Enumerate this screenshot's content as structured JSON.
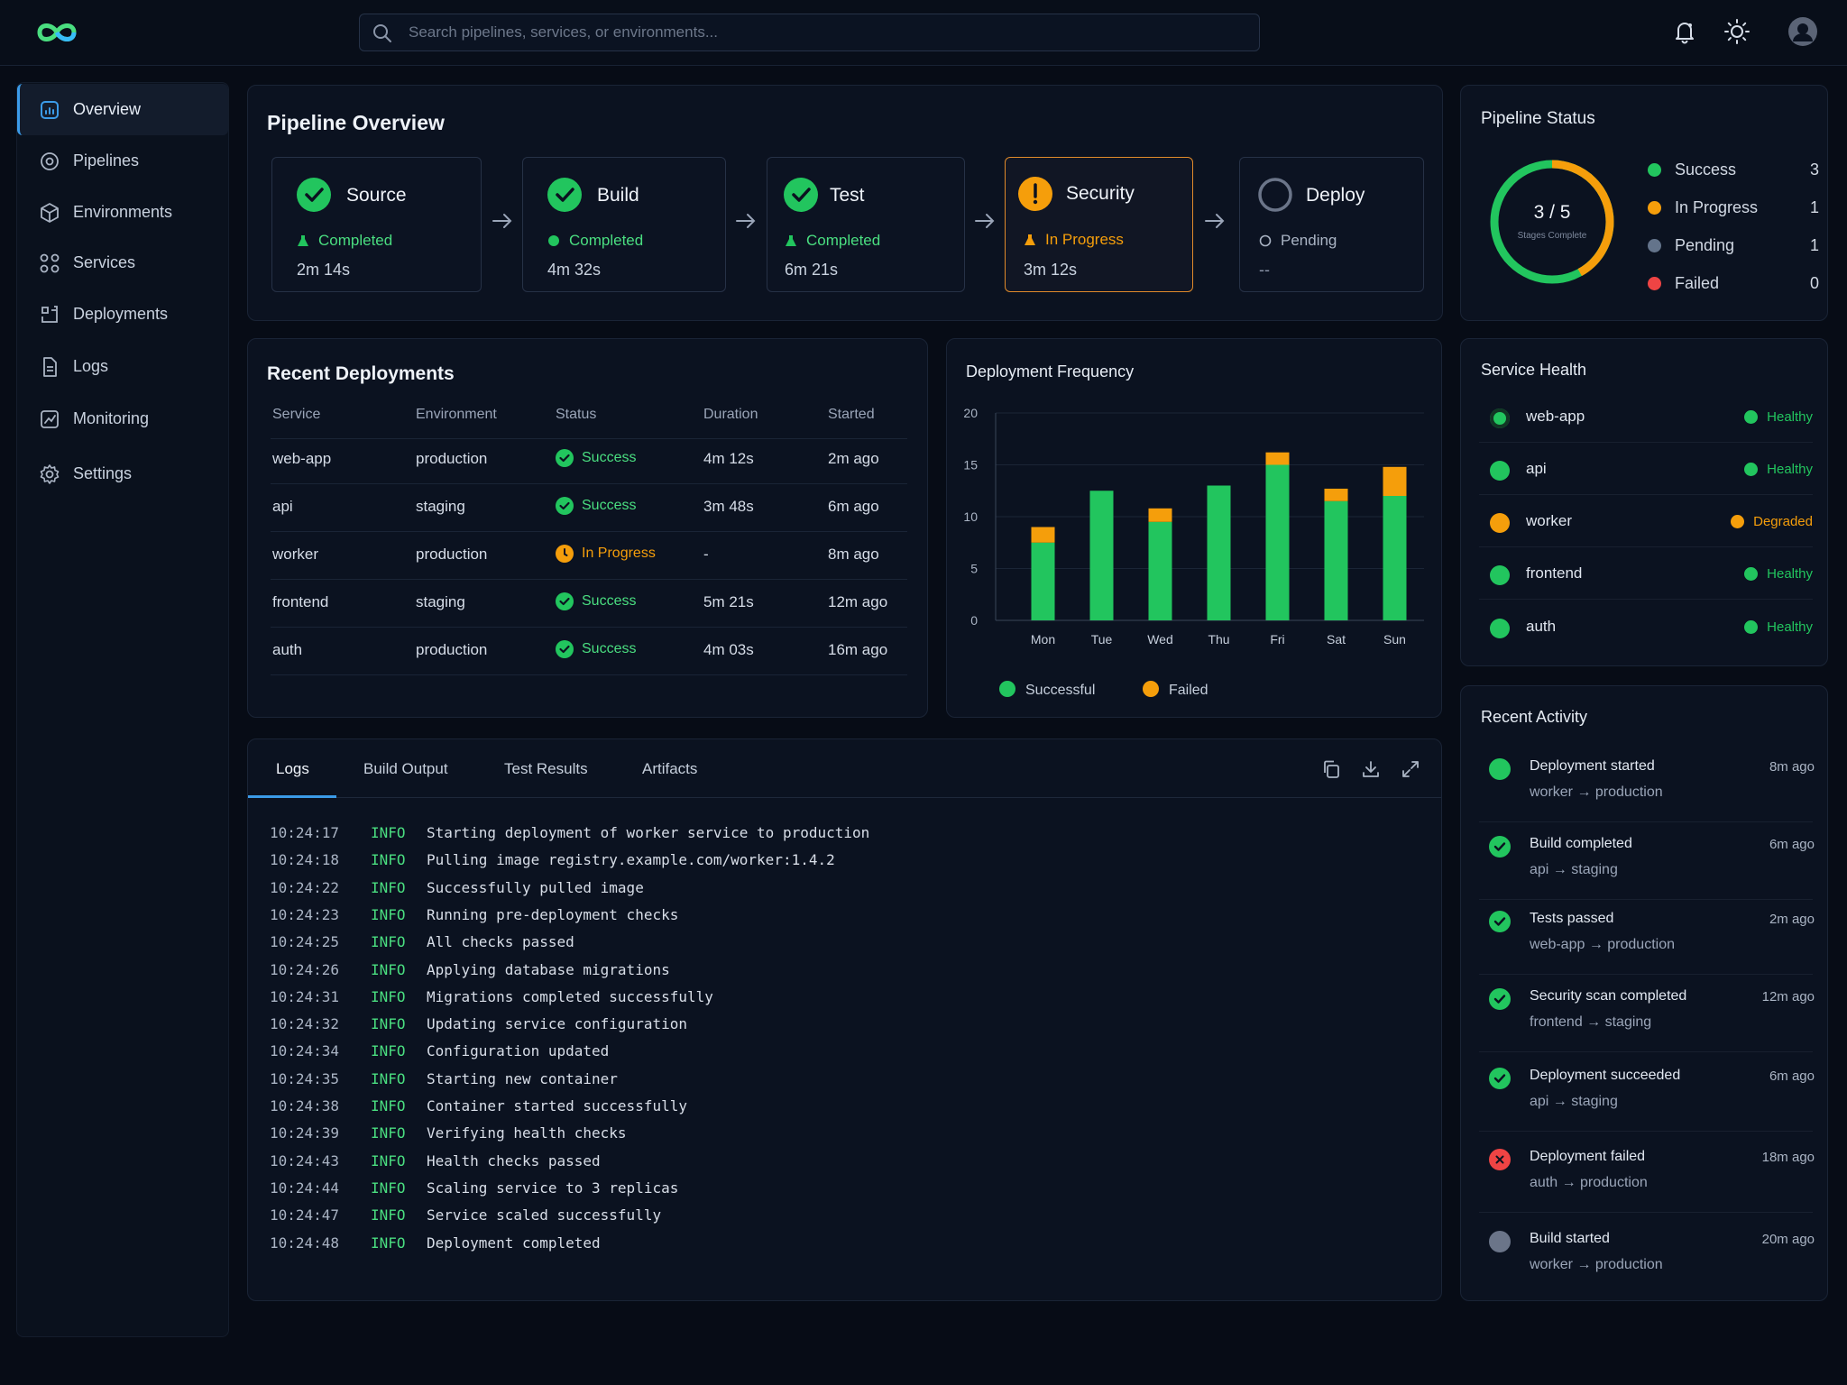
{
  "search": {
    "placeholder": "Search pipelines, services, or environments..."
  },
  "sidebar": {
    "items": [
      {
        "label": "Overview",
        "icon": "dashboard-icon",
        "active": true
      },
      {
        "label": "Pipelines",
        "icon": "pipelines-icon"
      },
      {
        "label": "Environments",
        "icon": "cube-icon"
      },
      {
        "label": "Services",
        "icon": "services-icon"
      },
      {
        "label": "Deployments",
        "icon": "deployments-icon"
      },
      {
        "label": "Logs",
        "icon": "document-icon"
      },
      {
        "label": "Monitoring",
        "icon": "chart-icon"
      },
      {
        "label": "Settings",
        "icon": "gear-icon"
      }
    ]
  },
  "pipeline_overview": {
    "title": "Pipeline Overview",
    "stages": [
      {
        "name": "Source",
        "status": "Completed",
        "time": "2m 14s",
        "state": "completed"
      },
      {
        "name": "Build",
        "status": "Completed",
        "time": "4m 32s",
        "state": "completed"
      },
      {
        "name": "Test",
        "status": "Completed",
        "time": "6m 21s",
        "state": "completed"
      },
      {
        "name": "Security",
        "status": "In Progress",
        "time": "3m 12s",
        "state": "in-progress"
      },
      {
        "name": "Deploy",
        "status": "Pending",
        "time": "--",
        "state": "pending"
      }
    ]
  },
  "pipeline_status": {
    "title": "Pipeline Status",
    "progress_text": "3 / 5",
    "progress_caption": "Stages Complete",
    "progress_fraction": 0.6,
    "legend": [
      {
        "label": "Success",
        "value": "3",
        "color": "#22c55e"
      },
      {
        "label": "In Progress",
        "value": "1",
        "color": "#f59e0b"
      },
      {
        "label": "Pending",
        "value": "1",
        "color": "#64748b"
      },
      {
        "label": "Failed",
        "value": "0",
        "color": "#ef4444"
      }
    ]
  },
  "recent_deployments": {
    "title": "Recent Deployments",
    "columns": [
      "Service",
      "Environment",
      "Status",
      "Duration",
      "Started"
    ],
    "rows": [
      {
        "service": "web-app",
        "environment": "production",
        "status": "Success",
        "duration": "4m 12s",
        "started": "2m ago",
        "state": "success"
      },
      {
        "service": "api",
        "environment": "staging",
        "status": "Success",
        "duration": "3m 48s",
        "started": "6m ago",
        "state": "success"
      },
      {
        "service": "worker",
        "environment": "production",
        "status": "In Progress",
        "duration": "-",
        "started": "8m ago",
        "state": "in-progress"
      },
      {
        "service": "frontend",
        "environment": "staging",
        "status": "Success",
        "duration": "5m 21s",
        "started": "12m ago",
        "state": "success"
      },
      {
        "service": "auth",
        "environment": "production",
        "status": "Success",
        "duration": "4m 03s",
        "started": "16m ago",
        "state": "success"
      }
    ]
  },
  "chart_data": {
    "type": "bar",
    "title": "Deployment Frequency",
    "categories": [
      "Mon",
      "Tue",
      "Wed",
      "Thu",
      "Fri",
      "Sat",
      "Sun"
    ],
    "series": [
      {
        "name": "Successful",
        "values": [
          7.5,
          12.5,
          9.5,
          13,
          15,
          11.5,
          12
        ],
        "color": "#22c55e"
      },
      {
        "name": "Failed",
        "values": [
          1.5,
          0,
          1.3,
          0,
          1.2,
          1.2,
          2.8
        ],
        "color": "#f59e0b"
      }
    ],
    "stacked": true,
    "ylim": [
      0,
      20
    ],
    "yticks": [
      0,
      5,
      10,
      15,
      20
    ],
    "grid": true,
    "legend_position": "bottom"
  },
  "service_health": {
    "title": "Service Health",
    "items": [
      {
        "name": "web-app",
        "status": "Healthy",
        "color": "#22c55e"
      },
      {
        "name": "api",
        "status": "Healthy",
        "color": "#22c55e"
      },
      {
        "name": "worker",
        "status": "Degraded",
        "color": "#f59e0b"
      },
      {
        "name": "frontend",
        "status": "Healthy",
        "color": "#22c55e"
      },
      {
        "name": "auth",
        "status": "Healthy",
        "color": "#22c55e"
      }
    ]
  },
  "logs_panel": {
    "tabs": [
      "Logs",
      "Build Output",
      "Test Results",
      "Artifacts"
    ],
    "lines": [
      {
        "time": "10:24:17",
        "level": "INFO",
        "message": "Starting deployment of worker service to production"
      },
      {
        "time": "10:24:18",
        "level": "INFO",
        "message": "Pulling image registry.example.com/worker:1.4.2"
      },
      {
        "time": "10:24:22",
        "level": "INFO",
        "message": "Successfully pulled image"
      },
      {
        "time": "10:24:23",
        "level": "INFO",
        "message": "Running pre-deployment checks"
      },
      {
        "time": "10:24:25",
        "level": "INFO",
        "message": "All checks passed"
      },
      {
        "time": "10:24:26",
        "level": "INFO",
        "message": "Applying database migrations"
      },
      {
        "time": "10:24:31",
        "level": "INFO",
        "message": "Migrations completed successfully"
      },
      {
        "time": "10:24:32",
        "level": "INFO",
        "message": "Updating service configuration"
      },
      {
        "time": "10:24:34",
        "level": "INFO",
        "message": "Configuration updated"
      },
      {
        "time": "10:24:35",
        "level": "INFO",
        "message": "Starting new container"
      },
      {
        "time": "10:24:38",
        "level": "INFO",
        "message": "Container started successfully"
      },
      {
        "time": "10:24:39",
        "level": "INFO",
        "message": "Verifying health checks"
      },
      {
        "time": "10:24:43",
        "level": "INFO",
        "message": "Health checks passed"
      },
      {
        "time": "10:24:44",
        "level": "INFO",
        "message": "Scaling service to 3 replicas"
      },
      {
        "time": "10:24:47",
        "level": "INFO",
        "message": "Service scaled successfully"
      },
      {
        "time": "10:24:48",
        "level": "INFO",
        "message": "Deployment completed"
      }
    ]
  },
  "recent_activity": {
    "title": "Recent Activity",
    "items": [
      {
        "title": "Deployment started",
        "subtitle": "worker → production",
        "time": "8m ago",
        "state": "started"
      },
      {
        "title": "Build completed",
        "subtitle": "api → staging",
        "time": "6m ago",
        "state": "success"
      },
      {
        "title": "Tests passed",
        "subtitle": "web-app → production",
        "time": "2m ago",
        "state": "success"
      },
      {
        "title": "Security scan completed",
        "subtitle": "frontend → staging",
        "time": "12m ago",
        "state": "success"
      },
      {
        "title": "Deployment succeeded",
        "subtitle": "api → staging",
        "time": "6m ago",
        "state": "success"
      },
      {
        "title": "Deployment failed",
        "subtitle": "auth → production",
        "time": "18m ago",
        "state": "failed"
      },
      {
        "title": "Build started",
        "subtitle": "worker → production",
        "time": "20m ago",
        "state": "pending"
      }
    ]
  }
}
